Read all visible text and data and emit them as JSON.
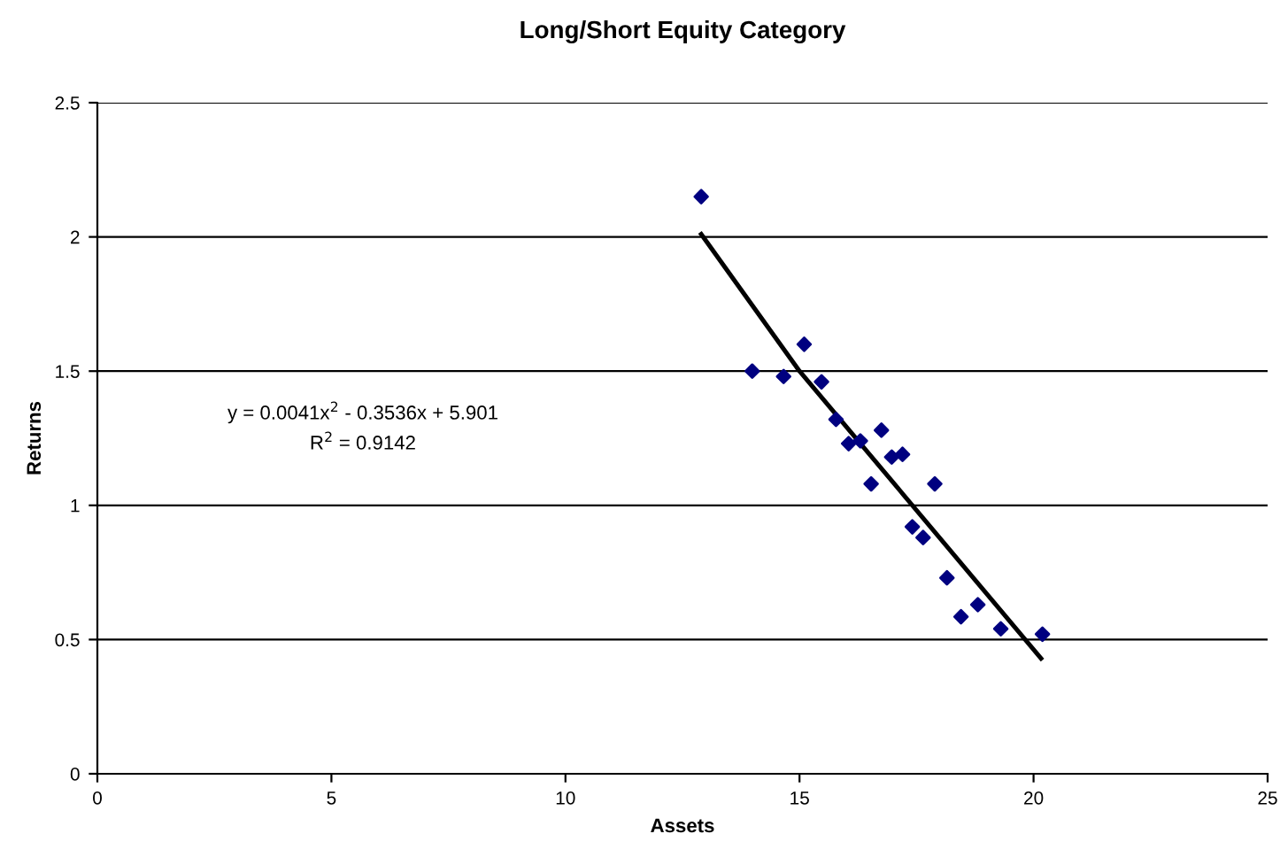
{
  "chart_data": {
    "type": "scatter",
    "title": "Long/Short Equity Category",
    "xlabel": "Assets",
    "ylabel": "Returns",
    "xlim": [
      0,
      25
    ],
    "xticks": [
      0,
      5,
      10,
      15,
      20,
      25
    ],
    "ylim": [
      0,
      2.5
    ],
    "yticks": [
      0,
      0.5,
      1,
      1.5,
      2,
      2.5
    ],
    "grid": "y",
    "marker": "diamond",
    "legend": false,
    "annotations": [
      "y = 0.0041x$^{2}$ - 0.3536x + 5.901",
      "R$^{2}$ = 0.9142"
    ],
    "series": [
      {
        "color": "#000080",
        "x": [
          12.9,
          13.99,
          14.66,
          15.1,
          15.47,
          15.78,
          16.05,
          16.3,
          16.75,
          16.97,
          17.2,
          16.53,
          17.89,
          17.41,
          17.64,
          18.15,
          18.45,
          18.81,
          19.3,
          20.19
        ],
        "values": [
          2.15,
          1.5,
          1.48,
          1.6,
          1.46,
          1.32,
          1.23,
          1.24,
          1.28,
          1.18,
          1.19,
          1.08,
          1.08,
          0.92,
          0.88,
          0.73,
          0.585,
          0.63,
          0.54,
          0.52
        ]
      },
      {
        "type": "line",
        "color": "#000000",
        "marker": "none",
        "x": [
          12.9,
          15.0,
          20.16
        ],
        "values": [
          2.01,
          1.5,
          0.43
        ]
      }
    ]
  }
}
